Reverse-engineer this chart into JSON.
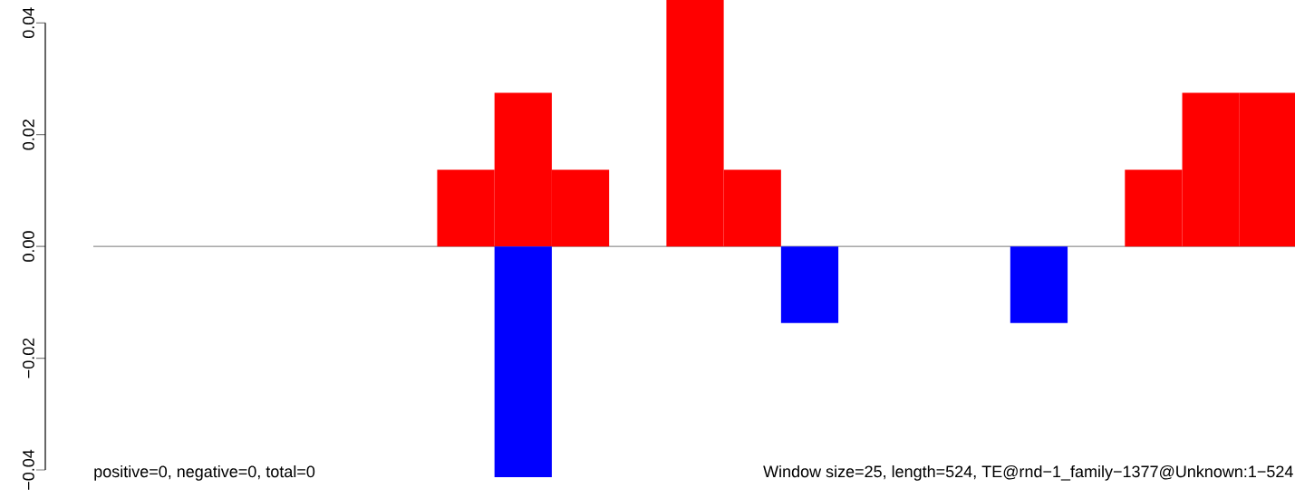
{
  "chart_data": {
    "type": "bar",
    "categories": [
      null,
      null,
      null,
      null,
      null,
      null,
      null,
      null,
      null,
      null,
      null,
      null,
      null,
      null,
      null,
      null,
      null,
      null,
      null,
      null,
      null
    ],
    "series": [
      {
        "color": "#ff0000",
        "values": [
          0,
          0,
          0,
          0,
          0,
          0,
          0.0137,
          0.0275,
          0.0137,
          0,
          0.0441,
          0.0137,
          0,
          0,
          0,
          0,
          0,
          0,
          0.0137,
          0.0275,
          0.0275
        ]
      },
      {
        "color": "#0000ff",
        "values": [
          0,
          0,
          0,
          0,
          0,
          0,
          0,
          -0.0413,
          0,
          0,
          0,
          0,
          -0.0137,
          0,
          0,
          0,
          -0.0137,
          0,
          0,
          0,
          0
        ]
      }
    ],
    "ylim": [
      -0.0413,
      0.0441
    ],
    "yticks": [
      {
        "value": -0.04,
        "label": "−0.04"
      },
      {
        "value": -0.02,
        "label": "−0.02"
      },
      {
        "value": 0,
        "label": "0.00"
      },
      {
        "value": 0.02,
        "label": "0.02"
      },
      {
        "value": 0.04,
        "label": "0.04"
      }
    ],
    "ref_lines": [
      {
        "axis": "y",
        "value": 0,
        "color": "#555555"
      }
    ],
    "annotations": [
      "positive=0, negative=0, total=0",
      "Window size=25, length=524, TE@rnd−1_family−1377@Unknown:1−524"
    ]
  }
}
